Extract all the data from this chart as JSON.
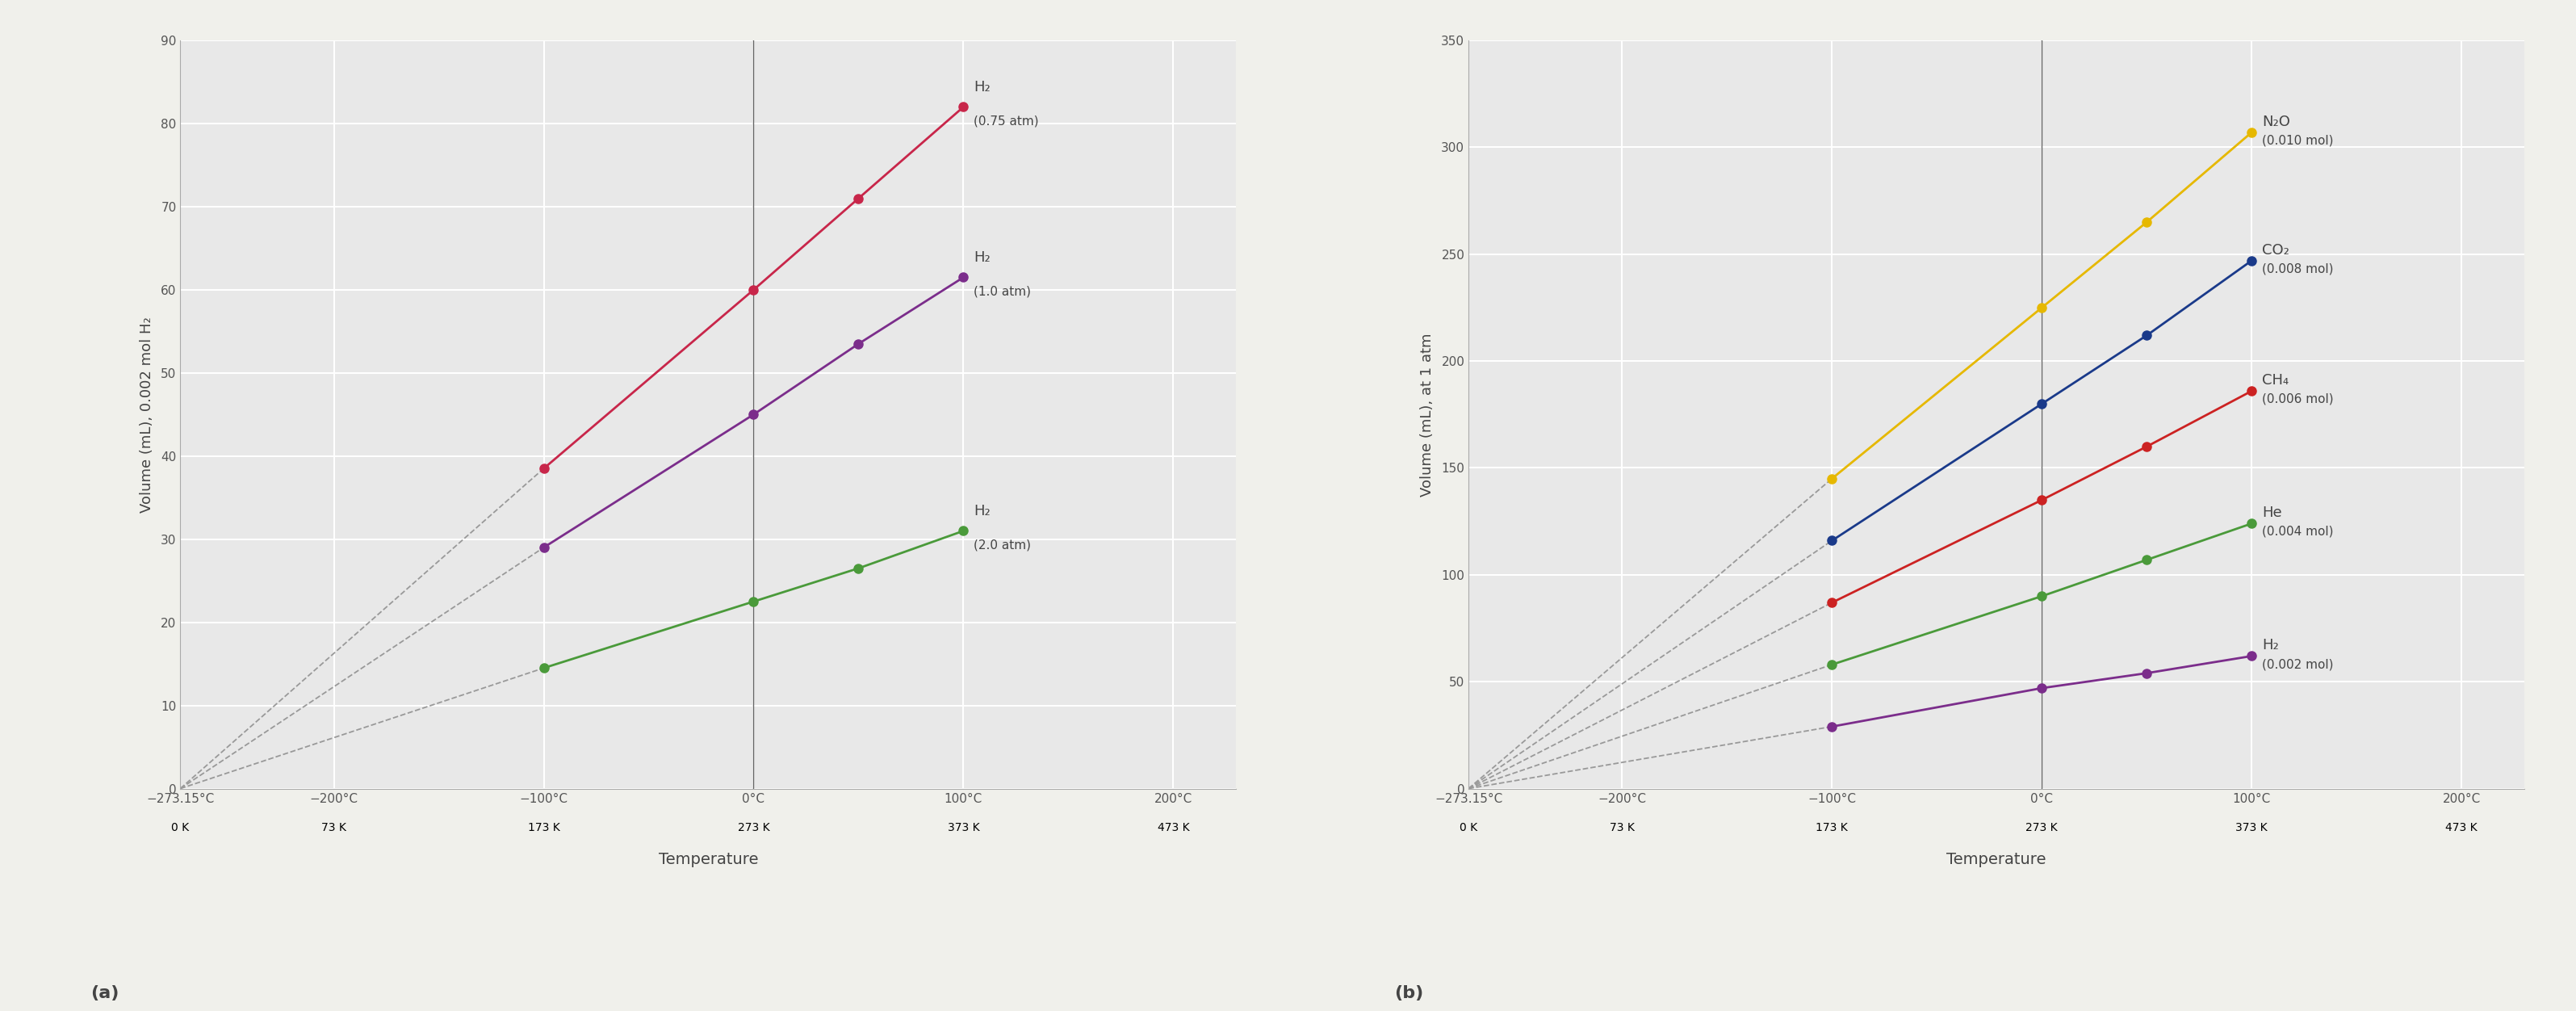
{
  "panel_a": {
    "ylabel": "Volume (mL), 0.002 mol H₂",
    "ylim": [
      0,
      90
    ],
    "yticks": [
      0,
      10,
      20,
      30,
      40,
      50,
      60,
      70,
      80,
      90
    ],
    "series": [
      {
        "label": "H₂",
        "sublabel": "(0.75 atm)",
        "color": "#c8264a",
        "temps_C": [
          -100,
          0,
          50,
          100
        ],
        "volumes": [
          38.5,
          60.0,
          71.0,
          82.0
        ]
      },
      {
        "label": "H₂",
        "sublabel": "(1.0 atm)",
        "color": "#7b2d8b",
        "temps_C": [
          -100,
          0,
          50,
          100
        ],
        "volumes": [
          29.0,
          45.0,
          53.5,
          61.5
        ]
      },
      {
        "label": "H₂",
        "sublabel": "(2.0 atm)",
        "color": "#4a9a3a",
        "temps_C": [
          -100,
          0,
          50,
          100
        ],
        "volumes": [
          14.5,
          22.5,
          26.5,
          31.0
        ]
      }
    ],
    "panel_label": "(a)"
  },
  "panel_b": {
    "ylabel": "Volume (mL), at 1 atm",
    "ylim": [
      0,
      350
    ],
    "yticks": [
      0,
      50,
      100,
      150,
      200,
      250,
      300,
      350
    ],
    "series": [
      {
        "label": "N₂O",
        "sublabel": "(0.010 mol)",
        "color": "#e6b800",
        "temps_C": [
          -100,
          0,
          50,
          100
        ],
        "volumes": [
          145.0,
          225.0,
          265.0,
          307.0
        ]
      },
      {
        "label": "CO₂",
        "sublabel": "(0.008 mol)",
        "color": "#1a3a8a",
        "temps_C": [
          -100,
          0,
          50,
          100
        ],
        "volumes": [
          116.0,
          180.0,
          212.0,
          247.0
        ]
      },
      {
        "label": "CH₄",
        "sublabel": "(0.006 mol)",
        "color": "#cc2222",
        "temps_C": [
          -100,
          0,
          50,
          100
        ],
        "volumes": [
          87.0,
          135.0,
          160.0,
          186.0
        ]
      },
      {
        "label": "He",
        "sublabel": "(0.004 mol)",
        "color": "#4a9a3a",
        "temps_C": [
          -100,
          0,
          50,
          100
        ],
        "volumes": [
          58.0,
          90.0,
          107.0,
          124.0
        ]
      },
      {
        "label": "H₂",
        "sublabel": "(0.002 mol)",
        "color": "#7b2d8b",
        "temps_C": [
          -100,
          0,
          50,
          100
        ],
        "volumes": [
          29.0,
          47.0,
          54.0,
          62.0
        ]
      }
    ],
    "panel_label": "(b)"
  },
  "xlabel": "Temperature",
  "xticks_C": [
    -273.15,
    -200,
    -100,
    0,
    100,
    200
  ],
  "xtick_labels_C": [
    "−273.15°C",
    "−200°C",
    "−100°C",
    "0°C",
    "100°C",
    "200°C"
  ],
  "xtick_labels_K": [
    "0 K",
    "73 K",
    "173 K",
    "273 K",
    "373 K",
    "473 K"
  ],
  "xlim": [
    -273.15,
    230
  ],
  "background_color": "#e8e8e8",
  "figure_background": "#f0f0eb",
  "grid_color": "#ffffff",
  "tick_color": "#555555",
  "font_color": "#444444",
  "label_fontsize": 13,
  "tick_fontsize": 11,
  "panel_label_fontsize": 14,
  "annotation_label_fontsize": 13,
  "annotation_sub_fontsize": 11,
  "marker_size": 8,
  "line_width": 2.0,
  "dashed_color": "#999999"
}
